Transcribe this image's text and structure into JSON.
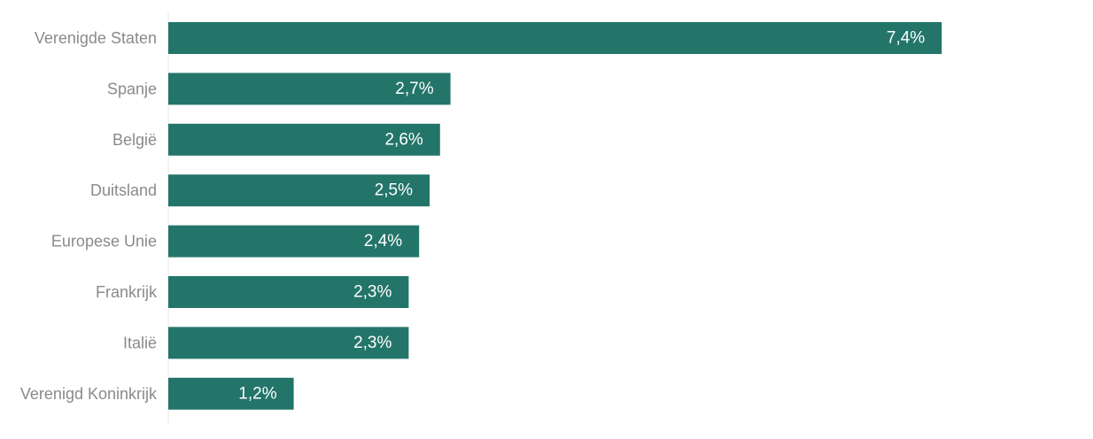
{
  "chart_data": {
    "type": "bar",
    "orientation": "horizontal",
    "categories": [
      "Verenigde Staten",
      "Spanje",
      "België",
      "Duitsland",
      "Europese Unie",
      "Frankrijk",
      "Italië",
      "Verenigd Koninkrijk"
    ],
    "values": [
      7.4,
      2.7,
      2.6,
      2.5,
      2.4,
      2.3,
      2.3,
      1.2
    ],
    "value_labels": [
      "7,4%",
      "2,7%",
      "2,6%",
      "2,5%",
      "2,4%",
      "2,3%",
      "2,3%",
      "1,2%"
    ],
    "unit": "%",
    "xlim": [
      0,
      10
    ],
    "grid": false,
    "legend": "none",
    "bar_color": "#23756a"
  }
}
